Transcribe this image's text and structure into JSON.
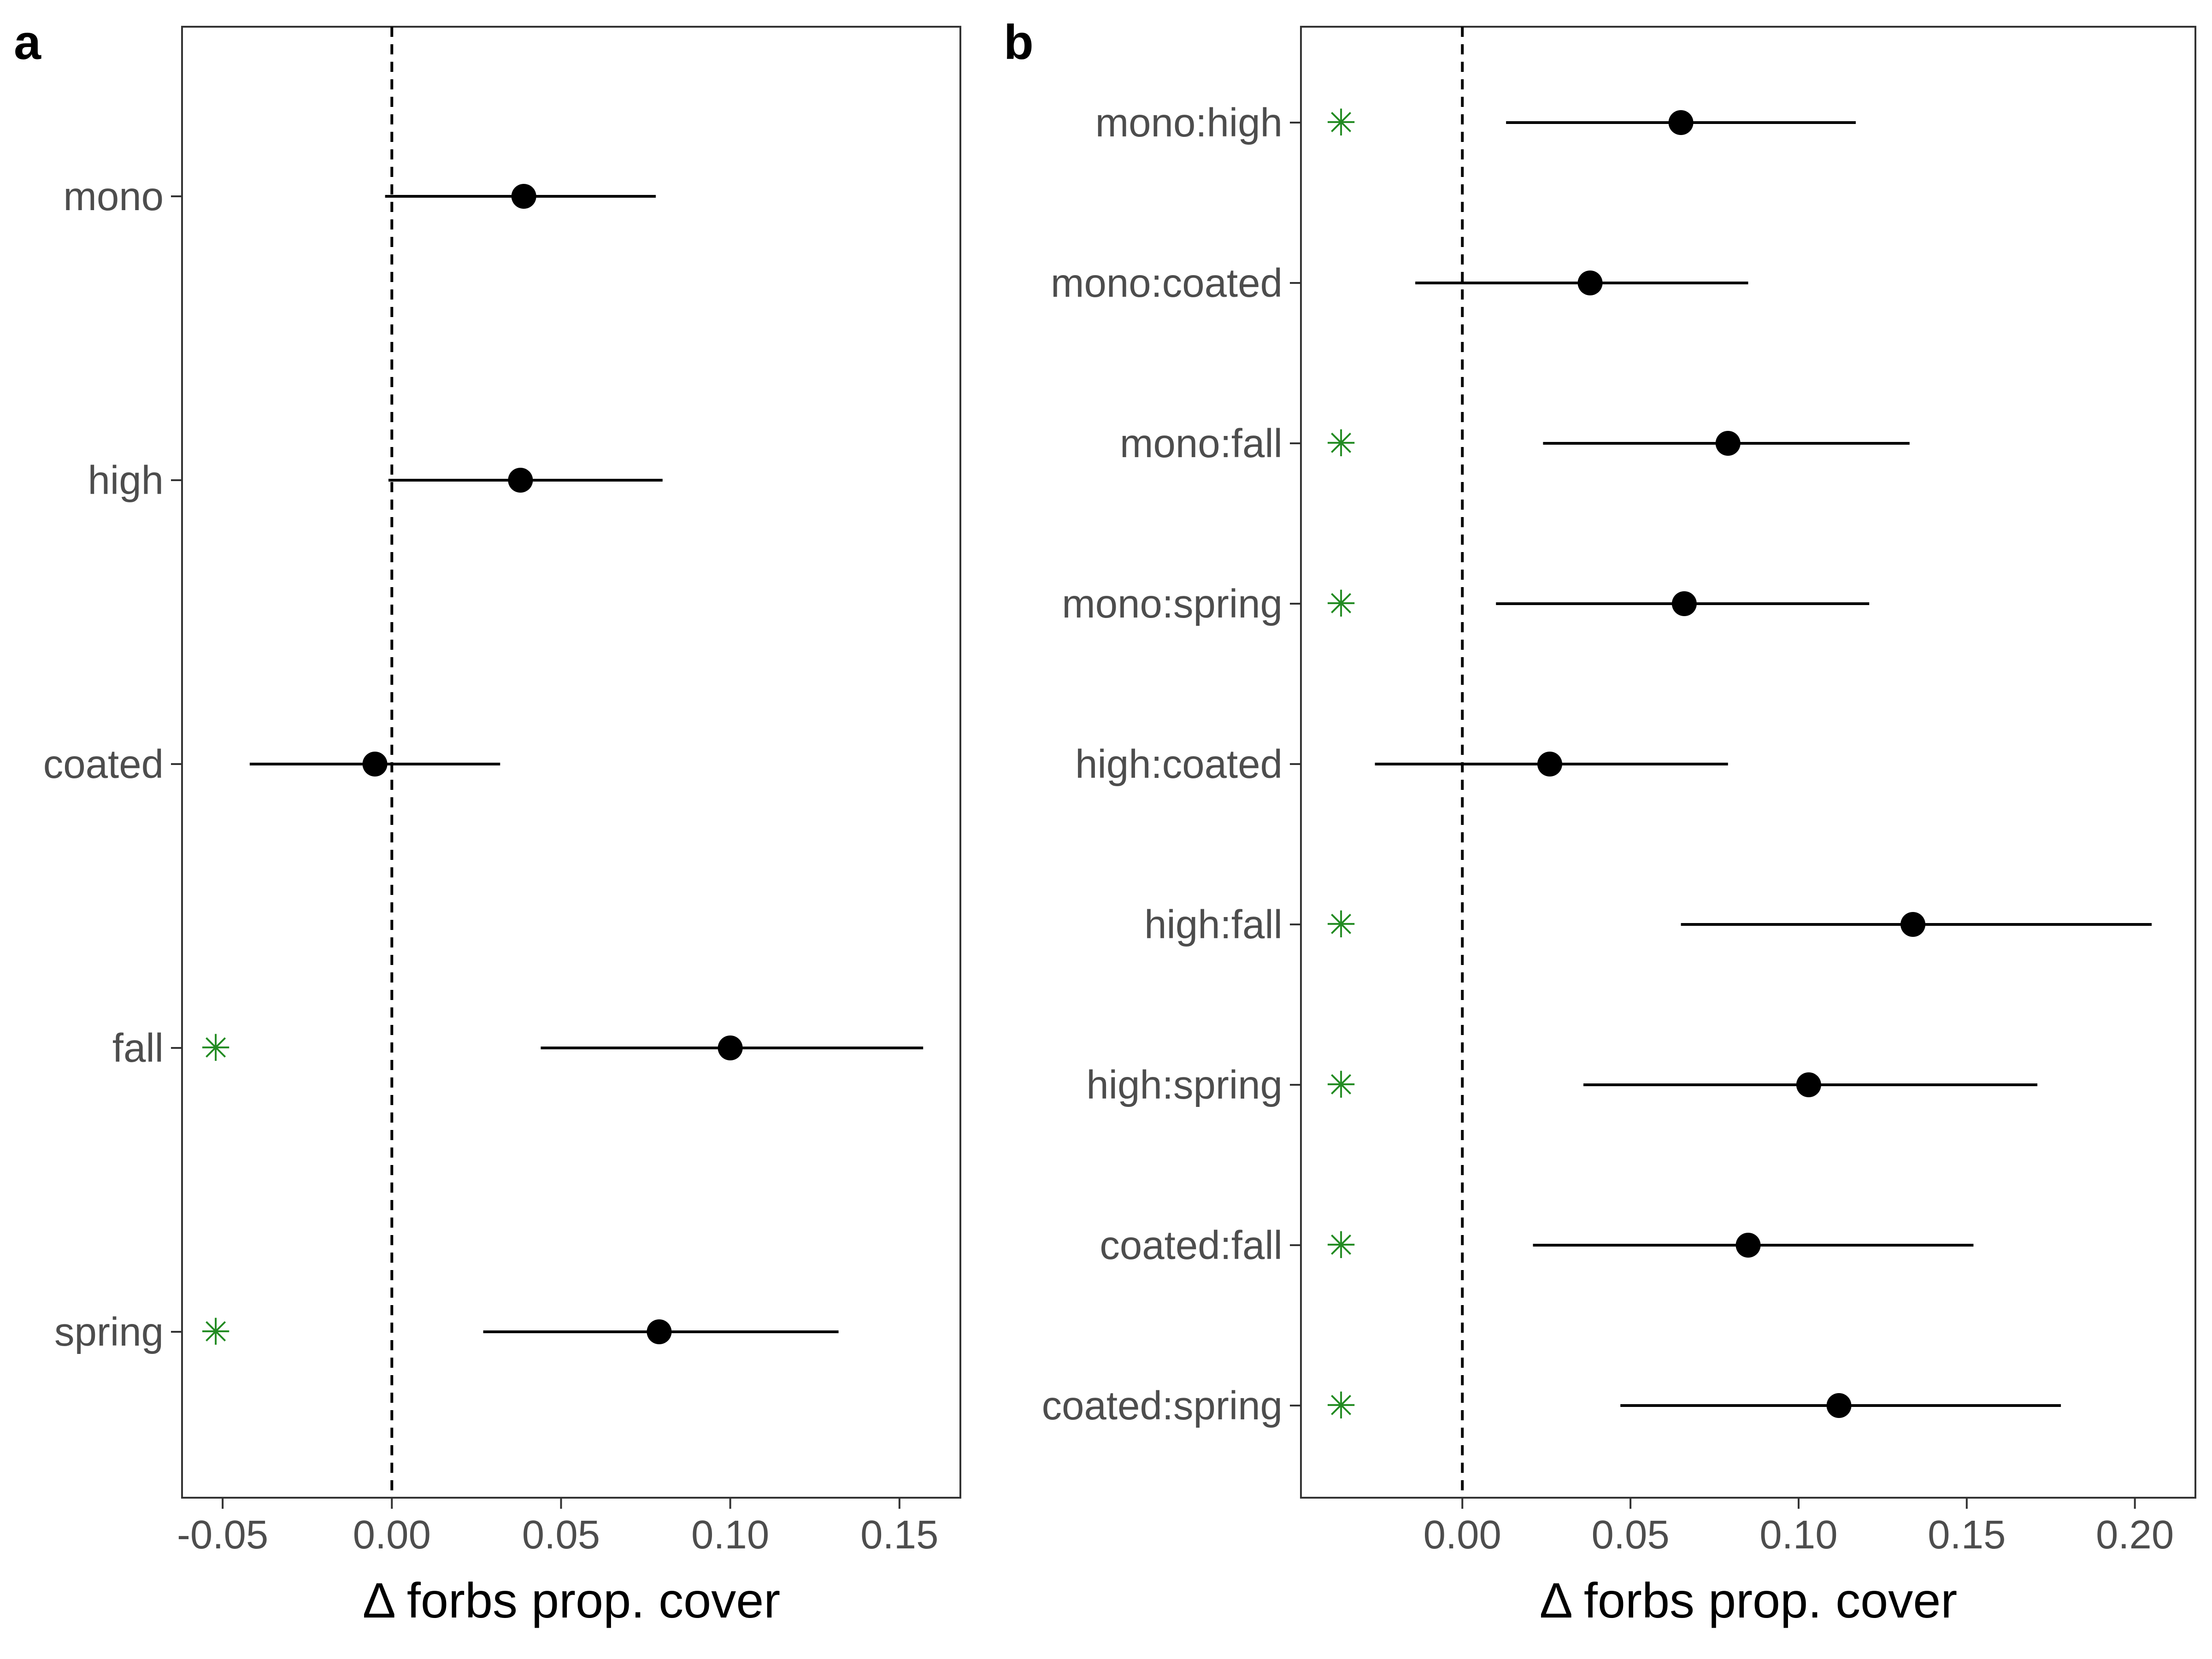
{
  "chart_data": [
    {
      "type": "scatter",
      "panel": "a",
      "xlabel": "Δ forbs prop. cover",
      "ylabel": "",
      "xlim": [
        -0.062,
        0.168
      ],
      "xticks": [
        -0.05,
        0.0,
        0.05,
        0.1,
        0.15
      ],
      "xtick_labels": [
        "-0.05",
        "0.00",
        "0.05",
        "0.10",
        "0.15"
      ],
      "reference_line": 0,
      "grid": false,
      "categories": [
        "mono",
        "high",
        "coated",
        "fall",
        "spring"
      ],
      "estimates": [
        0.039,
        0.038,
        -0.005,
        0.1,
        0.079
      ],
      "lower": [
        -0.002,
        -0.001,
        -0.042,
        0.044,
        0.027
      ],
      "upper": [
        0.078,
        0.08,
        0.032,
        0.157,
        0.132
      ],
      "significant": [
        false,
        false,
        false,
        true,
        true
      ],
      "sig_symbol": "✳",
      "sig_color": "#228b22"
    },
    {
      "type": "scatter",
      "panel": "b",
      "xlabel": "Δ forbs prop. cover",
      "ylabel": "",
      "xlim": [
        -0.048,
        0.218
      ],
      "xticks": [
        0.0,
        0.05,
        0.1,
        0.15,
        0.2
      ],
      "xtick_labels": [
        "0.00",
        "0.05",
        "0.10",
        "0.15",
        "0.20"
      ],
      "reference_line": 0,
      "grid": false,
      "categories": [
        "mono:high",
        "mono:coated",
        "mono:fall",
        "mono:spring",
        "high:coated",
        "high:fall",
        "high:spring",
        "coated:fall",
        "coated:spring"
      ],
      "estimates": [
        0.065,
        0.038,
        0.079,
        0.066,
        0.026,
        0.134,
        0.103,
        0.085,
        0.112
      ],
      "lower": [
        0.013,
        -0.014,
        0.024,
        0.01,
        -0.026,
        0.065,
        0.036,
        0.021,
        0.047
      ],
      "upper": [
        0.117,
        0.085,
        0.133,
        0.121,
        0.079,
        0.205,
        0.171,
        0.152,
        0.178
      ],
      "significant": [
        true,
        false,
        true,
        true,
        false,
        true,
        true,
        true,
        true
      ],
      "sig_symbol": "✳",
      "sig_color": "#228b22"
    }
  ]
}
